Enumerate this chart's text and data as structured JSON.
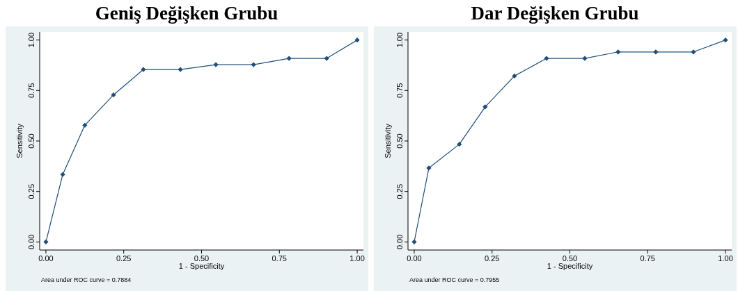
{
  "chart_data": [
    {
      "type": "line",
      "title": "Geniş Değişken Grubu",
      "xlabel": "1 - Specificity",
      "ylabel": "Sensitivity",
      "marker": "diamond",
      "line_style": "solid",
      "grid": false,
      "annotations": [
        "Area under ROC curve = 0.7884"
      ],
      "xlim": [
        -0.02,
        1.02
      ],
      "ylim": [
        -0.04,
        1.04
      ],
      "xticks": [
        {
          "value": 0,
          "label": "0.00"
        },
        {
          "value": 0.25,
          "label": "0.25"
        },
        {
          "value": 0.5,
          "label": "0.50"
        },
        {
          "value": 0.75,
          "label": "0.75"
        },
        {
          "value": 1,
          "label": "1.00"
        }
      ],
      "yticks": [
        {
          "value": 0,
          "label": "0.00"
        },
        {
          "value": 0.25,
          "label": "0.25"
        },
        {
          "value": 0.5,
          "label": "0.50"
        },
        {
          "value": 0.75,
          "label": "0.75"
        },
        {
          "value": 1,
          "label": "1.00"
        }
      ],
      "x": [
        0,
        0.054,
        0.125,
        0.217,
        0.313,
        0.432,
        0.546,
        0.667,
        0.781,
        0.902,
        1
      ],
      "series": [
        {
          "color": "#1f4e79",
          "values": [
            0,
            0.334,
            0.578,
            0.728,
            0.854,
            0.854,
            0.878,
            0.878,
            0.909,
            0.909,
            1
          ]
        }
      ]
    },
    {
      "type": "line",
      "title": "Dar Değişken Grubu",
      "xlabel": "1 - Specificity",
      "ylabel": "Sensitivity",
      "marker": "diamond",
      "line_style": "solid",
      "grid": false,
      "annotations": [
        "Area under ROC curve = 0.7955"
      ],
      "xlim": [
        -0.02,
        1.02
      ],
      "ylim": [
        -0.04,
        1.04
      ],
      "xticks": [
        {
          "value": 0,
          "label": "0.00"
        },
        {
          "value": 0.25,
          "label": "0.25"
        },
        {
          "value": 0.5,
          "label": "0.50"
        },
        {
          "value": 0.75,
          "label": "0.75"
        },
        {
          "value": 1,
          "label": "1.00"
        }
      ],
      "yticks": [
        {
          "value": 0,
          "label": "0.00"
        },
        {
          "value": 0.25,
          "label": "0.25"
        },
        {
          "value": 0.5,
          "label": "0.50"
        },
        {
          "value": 0.75,
          "label": "0.75"
        },
        {
          "value": 1,
          "label": "1.00"
        }
      ],
      "x": [
        0,
        0.047,
        0.145,
        0.228,
        0.322,
        0.425,
        0.548,
        0.655,
        0.776,
        0.897,
        1
      ],
      "series": [
        {
          "color": "#1f4e79",
          "values": [
            0,
            0.366,
            0.484,
            0.669,
            0.822,
            0.909,
            0.909,
            0.941,
            0.941,
            0.941,
            1
          ]
        }
      ]
    }
  ]
}
